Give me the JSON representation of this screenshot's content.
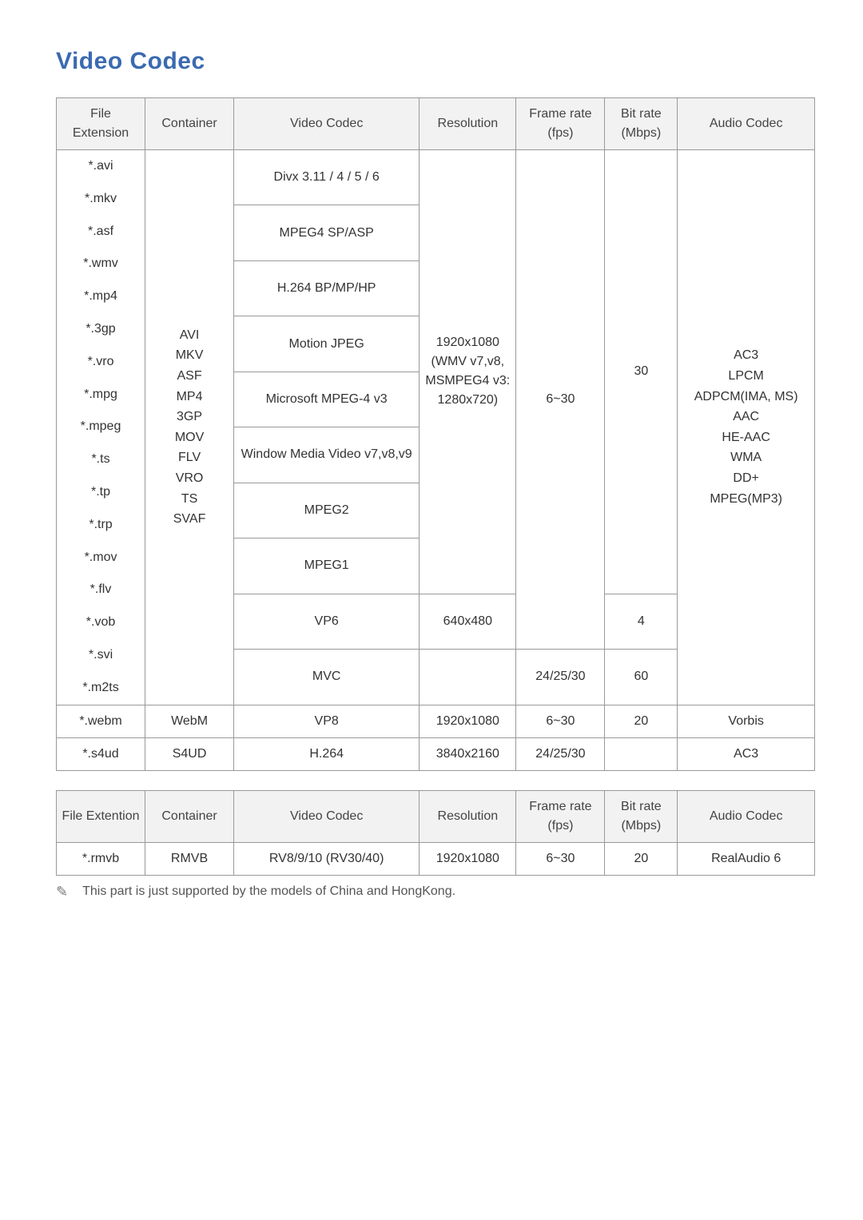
{
  "title": "Video Codec",
  "colors": {
    "title": "#3b6ab0",
    "header_bg": "#f2f2f2",
    "border": "#999999",
    "text": "#333333",
    "footnote": "#555555"
  },
  "table1": {
    "headers": {
      "ext": "File Extension",
      "container": "Container",
      "vcodec": "Video Codec",
      "resolution": "Resolution",
      "fps": "Frame rate (fps)",
      "bitrate": "Bit rate (Mbps)",
      "acodec": "Audio Codec"
    },
    "ext_list": [
      "*.avi",
      "*.mkv",
      "*.asf",
      "*.wmv",
      "*.mp4",
      "*.3gp",
      "*.vro",
      "*.mpg",
      "*.mpeg",
      "*.ts",
      "*.tp",
      "*.trp",
      "*.mov",
      "*.flv",
      "*.vob",
      "*.svi",
      "*.m2ts"
    ],
    "container_list": [
      "AVI",
      "MKV",
      "ASF",
      "MP4",
      "3GP",
      "MOV",
      "FLV",
      "VRO",
      "TS",
      "SVAF"
    ],
    "vcodecs_group1": [
      "Divx 3.11 / 4 / 5 / 6",
      "MPEG4 SP/ASP",
      "H.264 BP/MP/HP",
      "Motion JPEG",
      "Microsoft MPEG-4 v3",
      "Window Media Video v7,v8,v9",
      "MPEG2",
      "MPEG1"
    ],
    "resolution_group1": "1920x1080 (WMV v7,v8, MSMPEG4 v3: 1280x720)",
    "fps_group1": "6~30",
    "bitrate_group1": "30",
    "acodec_list": [
      "AC3",
      "LPCM",
      "ADPCM(IMA, MS)",
      "AAC",
      "HE-AAC",
      "WMA",
      "DD+",
      "MPEG(MP3)"
    ],
    "vp6_row": {
      "vcodec": "VP6",
      "resolution": "640x480",
      "bitrate": "4"
    },
    "mvc_row": {
      "vcodec": "MVC",
      "fps": "24/25/30",
      "bitrate": "60"
    },
    "webm_row": {
      "ext": "*.webm",
      "container": "WebM",
      "vcodec": "VP8",
      "resolution": "1920x1080",
      "fps": "6~30",
      "bitrate": "20",
      "acodec": "Vorbis"
    },
    "s4ud_row": {
      "ext": "*.s4ud",
      "container": "S4UD",
      "vcodec": "H.264",
      "resolution": "3840x2160",
      "fps": "24/25/30",
      "bitrate": "",
      "acodec": "AC3"
    }
  },
  "table2": {
    "headers": {
      "ext": "File Extention",
      "container": "Container",
      "vcodec": "Video Codec",
      "resolution": "Resolution",
      "fps": "Frame rate (fps)",
      "bitrate": "Bit rate (Mbps)",
      "acodec": "Audio Codec"
    },
    "row": {
      "ext": "*.rmvb",
      "container": "RMVB",
      "vcodec": "RV8/9/10 (RV30/40)",
      "resolution": "1920x1080",
      "fps": "6~30",
      "bitrate": "20",
      "acodec": "RealAudio 6"
    }
  },
  "footnote": "This part is just supported by the models of China and HongKong."
}
